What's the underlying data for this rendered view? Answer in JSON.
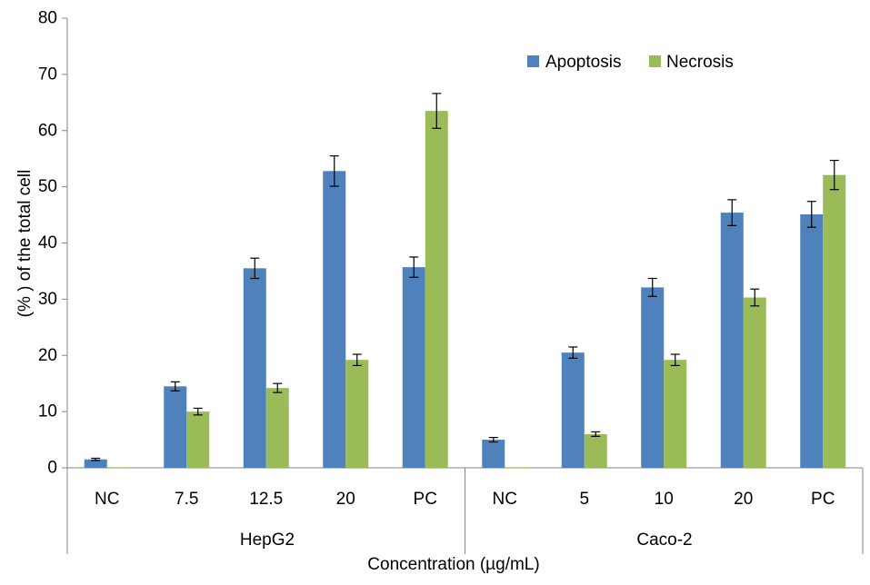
{
  "chart_data": {
    "type": "bar",
    "title": "",
    "ylabel": "(% ) of the total cell",
    "xlabel": "Concentration (µg/mL)",
    "ylim": [
      0,
      80
    ],
    "yticks": [
      0,
      10,
      20,
      30,
      40,
      50,
      60,
      70,
      80
    ],
    "groups": [
      {
        "name": "HepG2",
        "categories": [
          "NC",
          "7.5",
          "12.5",
          "20",
          "PC"
        ]
      },
      {
        "name": "Caco-2",
        "categories": [
          "NC",
          "5",
          "10",
          "20",
          "PC"
        ]
      }
    ],
    "categories": [
      "NC",
      "7.5",
      "12.5",
      "20",
      "PC",
      "NC",
      "5",
      "10",
      "20",
      "PC"
    ],
    "series": [
      {
        "name": "Apoptosis",
        "color": "#4F81BD",
        "values": [
          1.5,
          14.5,
          35.5,
          52.8,
          35.7,
          5.0,
          20.5,
          32.1,
          45.4,
          45.1
        ],
        "errors": [
          0.2,
          0.8,
          1.8,
          2.7,
          1.8,
          0.4,
          1.0,
          1.6,
          2.3,
          2.3
        ]
      },
      {
        "name": "Necrosis",
        "color": "#9BBB59",
        "values": [
          0.1,
          10.0,
          14.2,
          19.2,
          63.5,
          0.1,
          6.0,
          19.2,
          30.3,
          52.1
        ],
        "errors": [
          0.0,
          0.6,
          0.8,
          1.0,
          3.1,
          0.0,
          0.4,
          1.0,
          1.5,
          2.6
        ]
      }
    ],
    "legend_position": "top-right",
    "grid": false
  }
}
